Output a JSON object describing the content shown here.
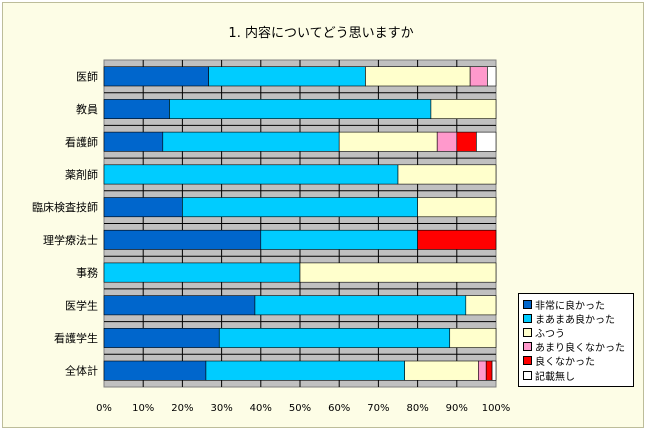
{
  "chart_data": {
    "type": "bar",
    "orientation": "horizontal",
    "stacked": "percent",
    "title": "1. 内容についてどう思いますか",
    "categories": [
      "医師",
      "教員",
      "看護師",
      "薬剤師",
      "臨床検査技師",
      "理学療法士",
      "事務",
      "医学生",
      "看護学生",
      "全体計"
    ],
    "xlim": [
      0,
      100
    ],
    "x_ticks": [
      "0%",
      "10%",
      "20%",
      "30%",
      "40%",
      "50%",
      "60%",
      "70%",
      "80%",
      "90%",
      "100%"
    ],
    "grid": true,
    "legend_position": "right",
    "series": [
      {
        "name": "非常に良かった",
        "color": "#0066cc",
        "values": [
          26.7,
          16.7,
          15.0,
          0,
          20.0,
          40.0,
          0,
          38.5,
          29.4,
          26.0
        ]
      },
      {
        "name": "まあまあ良かった",
        "color": "#00ccff",
        "values": [
          40.0,
          66.7,
          45.0,
          75.0,
          60.0,
          40.0,
          50.0,
          53.8,
          58.8,
          50.7
        ]
      },
      {
        "name": "ふつう",
        "color": "#ffffcc",
        "values": [
          26.7,
          16.6,
          25.0,
          25.0,
          20.0,
          0,
          50.0,
          7.7,
          11.8,
          18.8
        ]
      },
      {
        "name": "あまり良くなかった",
        "color": "#ff99cc",
        "values": [
          4.4,
          0,
          5.0,
          0,
          0,
          0,
          0,
          0,
          0,
          2.0
        ]
      },
      {
        "name": "良くなかった",
        "color": "#ff0000",
        "values": [
          0,
          0,
          5.0,
          0,
          0,
          20.0,
          0,
          0,
          0,
          1.5
        ]
      },
      {
        "name": "記載無し",
        "color": "#ffffff",
        "values": [
          2.2,
          0,
          5.0,
          0,
          0,
          0,
          0,
          0,
          0,
          1.0
        ]
      }
    ]
  }
}
